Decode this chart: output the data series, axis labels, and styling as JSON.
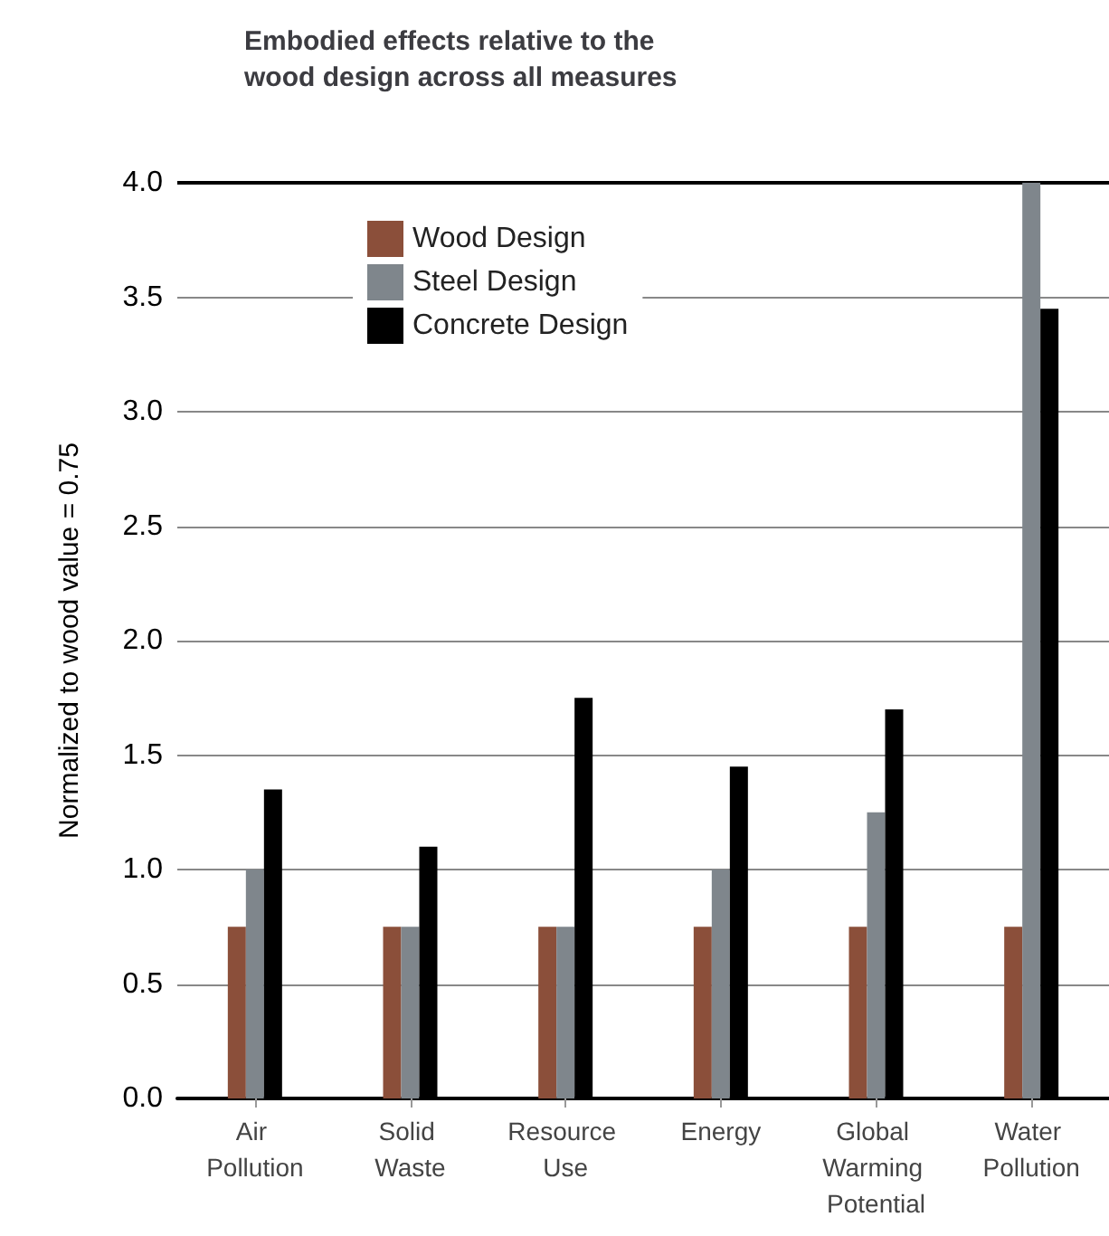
{
  "chart_data": {
    "type": "bar",
    "title": "Embodied effects relative to the wood design across all measures",
    "ylabel": "Normalized to wood value = 0.75",
    "categories": [
      "Air Pollution",
      "Solid Waste",
      "Resource Use",
      "Energy",
      "Global Warming Potential",
      "Water Pollution"
    ],
    "series": [
      {
        "name": "Wood Design",
        "color": "#8b4f3a",
        "values": [
          0.75,
          0.75,
          0.75,
          0.75,
          0.75,
          0.75
        ]
      },
      {
        "name": "Steel Design",
        "color": "#7f868c",
        "values": [
          1.0,
          0.75,
          0.75,
          1.0,
          1.25,
          4.0
        ]
      },
      {
        "name": "Concrete Design",
        "color": "#000000",
        "values": [
          1.35,
          1.1,
          1.75,
          1.45,
          1.7,
          3.45
        ]
      }
    ],
    "ylim": [
      0,
      4
    ],
    "yticks": [
      {
        "value": 0,
        "label": "0.0"
      },
      0.5,
      {
        "value": 1,
        "label": "1.0"
      },
      1.5,
      {
        "value": 2,
        "label": "2.0"
      },
      2.5,
      {
        "value": 3,
        "label": "3.0"
      },
      3.5,
      {
        "value": 4,
        "label": "4.0"
      }
    ],
    "grid": "y",
    "legend": "top"
  }
}
